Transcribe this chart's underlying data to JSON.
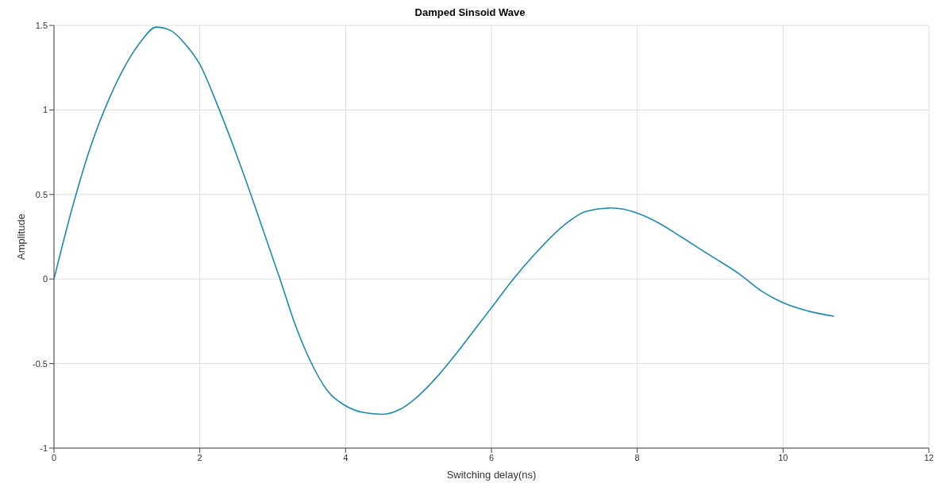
{
  "chart_data": {
    "type": "line",
    "title": "Damped Sinsoid Wave",
    "xlabel": "Switching delay(ns)",
    "ylabel": "Amplitude",
    "x": [
      0,
      0.25,
      0.5,
      0.75,
      1.0,
      1.2,
      1.4,
      1.6,
      1.8,
      2.0,
      2.25,
      2.5,
      2.7,
      2.9,
      3.1,
      3.3,
      3.5,
      3.75,
      4.0,
      4.25,
      4.5,
      4.75,
      5.0,
      5.25,
      5.5,
      5.75,
      6.0,
      6.3,
      6.6,
      7.0,
      7.3,
      7.65,
      8.0,
      8.3,
      8.6,
      9.0,
      9.4,
      9.7,
      10.0,
      10.35,
      10.7
    ],
    "series": [
      {
        "color": "#1a8ab0",
        "values": [
          0,
          0.42,
          0.78,
          1.06,
          1.28,
          1.41,
          1.49,
          1.47,
          1.39,
          1.27,
          1.02,
          0.74,
          0.5,
          0.25,
          0,
          -0.26,
          -0.47,
          -0.66,
          -0.75,
          -0.79,
          -0.8,
          -0.77,
          -0.69,
          -0.58,
          -0.45,
          -0.31,
          -0.17,
          0,
          0.15,
          0.32,
          0.4,
          0.42,
          0.39,
          0.33,
          0.25,
          0.14,
          0.03,
          -0.07,
          -0.14,
          -0.19,
          -0.22
        ]
      }
    ],
    "xlim": [
      0,
      12
    ],
    "xticks": [
      0,
      2,
      4,
      6,
      8,
      10,
      12
    ],
    "ylim": [
      -1,
      1.5
    ],
    "yticks": [
      -1,
      -0.5,
      0,
      0.5,
      1,
      1.5
    ],
    "grid": true,
    "legend": false,
    "marker": "none",
    "line_style": "solid"
  }
}
